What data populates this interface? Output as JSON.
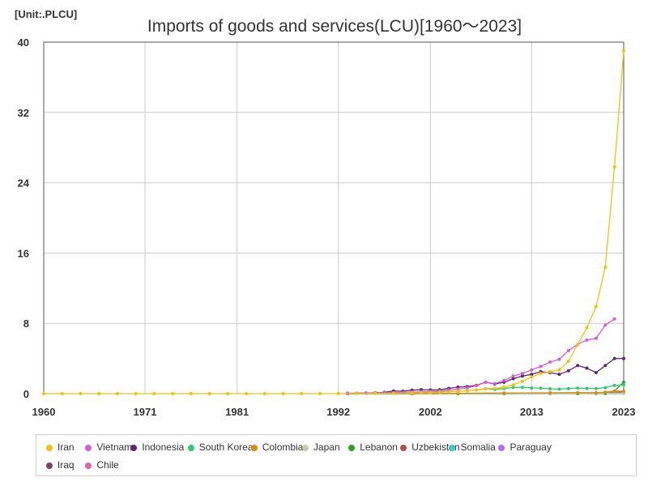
{
  "unit_label": "[Unit:.PLCU]",
  "chart_data": {
    "type": "line",
    "title": "Imports of goods and services(LCU)[1960～2023]",
    "xlabel": "",
    "ylabel": "",
    "xlim": [
      1960,
      2023
    ],
    "ylim": [
      0,
      40
    ],
    "x_ticks": [
      1960,
      1971,
      1981,
      1992,
      2002,
      2013,
      2023
    ],
    "y_ticks": [
      0,
      8,
      16,
      24,
      32,
      40
    ],
    "grid": true,
    "legend_position": "bottom",
    "series": [
      {
        "name": "Iran",
        "color": "#f2c10f",
        "x": [
          1960,
          1962,
          1964,
          1966,
          1968,
          1970,
          1972,
          1974,
          1976,
          1978,
          1980,
          1982,
          1984,
          1986,
          1988,
          1990,
          1992,
          1994,
          1996,
          1998,
          2000,
          2001,
          2002,
          2003,
          2004,
          2005,
          2006,
          2007,
          2008,
          2009,
          2010,
          2011,
          2012,
          2013,
          2014,
          2015,
          2016,
          2017,
          2018,
          2019,
          2020,
          2021,
          2022,
          2023
        ],
        "y": [
          0,
          0,
          0,
          0,
          0,
          0,
          0,
          0,
          0,
          0,
          0,
          0,
          0,
          0,
          0,
          0,
          0.01,
          0.02,
          0.03,
          0.05,
          0.08,
          0.1,
          0.12,
          0.15,
          0.2,
          0.28,
          0.35,
          0.42,
          0.55,
          0.6,
          0.75,
          1.0,
          1.4,
          1.9,
          2.3,
          2.5,
          2.7,
          3.7,
          5.6,
          7.5,
          9.9,
          14.4,
          25.8,
          39.0
        ]
      },
      {
        "name": "Vietnam",
        "color": "#d35fd3",
        "x": [
          1993,
          1994,
          1995,
          1996,
          1997,
          1998,
          1999,
          2000,
          2001,
          2002,
          2003,
          2004,
          2005,
          2006,
          2007,
          2008,
          2009,
          2010,
          2011,
          2012,
          2013,
          2014,
          2015,
          2016,
          2017,
          2018,
          2019,
          2020,
          2021,
          2022
        ],
        "y": [
          0.03,
          0.05,
          0.07,
          0.09,
          0.1,
          0.12,
          0.14,
          0.18,
          0.2,
          0.25,
          0.32,
          0.42,
          0.52,
          0.65,
          0.9,
          1.3,
          1.15,
          1.5,
          2.0,
          2.3,
          2.7,
          3.1,
          3.6,
          3.9,
          4.9,
          5.6,
          6.1,
          6.3,
          7.8,
          8.5
        ]
      },
      {
        "name": "Indonesia",
        "color": "#5b2a6e",
        "x": [
          1993,
          1994,
          1995,
          1996,
          1997,
          1998,
          1999,
          2000,
          2001,
          2002,
          2003,
          2004,
          2005,
          2006,
          2007,
          2008,
          2009,
          2010,
          2011,
          2012,
          2013,
          2014,
          2015,
          2016,
          2017,
          2018,
          2019,
          2020,
          2021,
          2022,
          2023
        ],
        "y": [
          0.04,
          0.05,
          0.07,
          0.09,
          0.15,
          0.3,
          0.28,
          0.4,
          0.45,
          0.42,
          0.45,
          0.6,
          0.75,
          0.8,
          0.95,
          1.3,
          1.1,
          1.3,
          1.7,
          2.0,
          2.2,
          2.5,
          2.4,
          2.2,
          2.6,
          3.2,
          2.9,
          2.4,
          3.2,
          4.0,
          4.0
        ]
      },
      {
        "name": "South Korea",
        "color": "#2ecc71",
        "x": [
          1993,
          1996,
          1999,
          2002,
          2004,
          2006,
          2008,
          2009,
          2010,
          2011,
          2012,
          2013,
          2014,
          2015,
          2016,
          2017,
          2018,
          2019,
          2020,
          2021,
          2022,
          2023
        ],
        "y": [
          0.05,
          0.1,
          0.12,
          0.18,
          0.25,
          0.32,
          0.55,
          0.48,
          0.58,
          0.72,
          0.72,
          0.65,
          0.62,
          0.55,
          0.52,
          0.58,
          0.63,
          0.6,
          0.58,
          0.68,
          0.95,
          1.0
        ]
      },
      {
        "name": "Colombia",
        "color": "#d98c0b",
        "x": [
          1993,
          2000,
          2005,
          2010,
          2015,
          2018,
          2020,
          2021,
          2022,
          2023
        ],
        "y": [
          0.01,
          0.02,
          0.04,
          0.07,
          0.1,
          0.12,
          0.11,
          0.17,
          0.3,
          0.28
        ]
      },
      {
        "name": "Japan",
        "color": "#c8c8b4",
        "x": [
          1993,
          2000,
          2005,
          2010,
          2015,
          2020,
          2023
        ],
        "y": [
          0.02,
          0.03,
          0.04,
          0.05,
          0.05,
          0.05,
          0.07
        ]
      },
      {
        "name": "Lebanon",
        "color": "#2e9e2e",
        "x": [
          1993,
          2000,
          2005,
          2010,
          2015,
          2018,
          2020,
          2021,
          2022,
          2023
        ],
        "y": [
          0.0,
          0.0,
          0.0,
          0.01,
          0.01,
          0.01,
          0.01,
          0.02,
          0.3,
          1.3
        ]
      },
      {
        "name": "Uzbekistan",
        "color": "#b0504f",
        "x": [
          1993,
          2000,
          2005,
          2010,
          2015,
          2018,
          2020,
          2021,
          2022,
          2023
        ],
        "y": [
          0.0,
          0.0,
          0.01,
          0.02,
          0.03,
          0.06,
          0.08,
          0.1,
          0.14,
          0.2
        ]
      },
      {
        "name": "Somalia",
        "color": "#3ec9c9",
        "x": [
          1993,
          2000,
          2010,
          2015,
          2020,
          2023
        ],
        "y": [
          0.0,
          0.0,
          0.0,
          0.01,
          0.02,
          0.03
        ]
      },
      {
        "name": "Paraguay",
        "color": "#b06ee8",
        "x": [
          1993,
          2000,
          2005,
          2010,
          2015,
          2020,
          2023
        ],
        "y": [
          0.01,
          0.02,
          0.03,
          0.05,
          0.06,
          0.07,
          0.09
        ]
      },
      {
        "name": "Iraq",
        "color": "#7a3f7a",
        "x": [
          1993,
          2000,
          2005,
          2010,
          2015,
          2020,
          2023
        ],
        "y": [
          0.0,
          0.01,
          0.02,
          0.05,
          0.07,
          0.06,
          0.09
        ]
      },
      {
        "name": "Chile",
        "color": "#e85fb0",
        "x": [
          1993,
          2000,
          2005,
          2010,
          2015,
          2020,
          2023
        ],
        "y": [
          0.01,
          0.02,
          0.03,
          0.05,
          0.07,
          0.09,
          0.11
        ]
      }
    ]
  }
}
